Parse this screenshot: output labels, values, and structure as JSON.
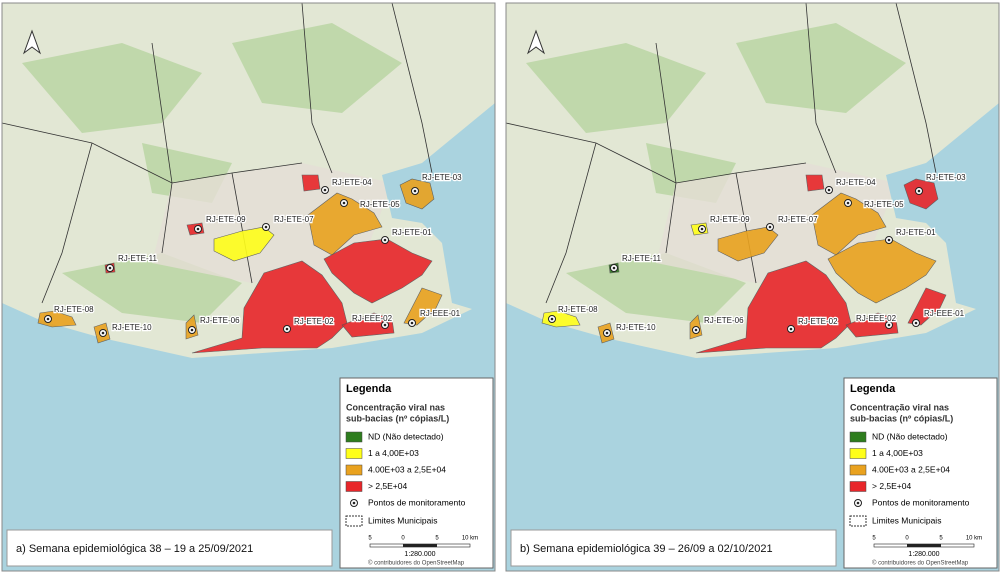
{
  "panels": [
    {
      "caption": "a) Semana epidemiológica 38 – 19 a 25/09/2021",
      "stations": [
        {
          "label": "RJ-ETE-04",
          "class": "high"
        },
        {
          "label": "RJ-ETE-03",
          "class": "mid"
        },
        {
          "label": "RJ-ETE-05",
          "class": "mid"
        },
        {
          "label": "RJ-ETE-01",
          "class": "high"
        },
        {
          "label": "RJ-ETE-09",
          "class": "high"
        },
        {
          "label": "RJ-ETE-07",
          "class": "low"
        },
        {
          "label": "RJ-ETE-11",
          "class": "high"
        },
        {
          "label": "RJ-ETE-08",
          "class": "mid"
        },
        {
          "label": "RJ-ETE-10",
          "class": "mid"
        },
        {
          "label": "RJ-ETE-06",
          "class": "mid"
        },
        {
          "label": "RJ-ETE-02",
          "class": "high"
        },
        {
          "label": "RJ-EEE-02",
          "class": "high"
        },
        {
          "label": "RJ-EEE-01",
          "class": "mid"
        }
      ]
    },
    {
      "caption": "b) Semana epidemiológica 39 – 26/09 a 02/10/2021",
      "stations": [
        {
          "label": "RJ-ETE-04",
          "class": "high"
        },
        {
          "label": "RJ-ETE-03",
          "class": "high"
        },
        {
          "label": "RJ-ETE-05",
          "class": "mid"
        },
        {
          "label": "RJ-ETE-01",
          "class": "mid"
        },
        {
          "label": "RJ-ETE-09",
          "class": "low"
        },
        {
          "label": "RJ-ETE-07",
          "class": "mid"
        },
        {
          "label": "RJ-ETE-11",
          "class": "nd"
        },
        {
          "label": "RJ-ETE-08",
          "class": "low"
        },
        {
          "label": "RJ-ETE-10",
          "class": "mid"
        },
        {
          "label": "RJ-ETE-06",
          "class": "mid"
        },
        {
          "label": "RJ-ETE-02",
          "class": "high"
        },
        {
          "label": "RJ-EEE-02",
          "class": "high"
        },
        {
          "label": "RJ-EEE-01",
          "class": "high"
        }
      ]
    }
  ],
  "legend": {
    "title": "Legenda",
    "subtitle": [
      "Concentração viral nas",
      "sub-bacias (nº cópias/L)"
    ],
    "classes": [
      {
        "key": "nd",
        "label": "ND (Não detectado)",
        "color": "#2e7d1e"
      },
      {
        "key": "low",
        "label": "1 a 4,00E+03",
        "color": "#ffff1a"
      },
      {
        "key": "mid",
        "label": "4.00E+03 a 2,5E+04",
        "color": "#e9a21f"
      },
      {
        "key": "high",
        "label": "> 2,5E+04",
        "color": "#e8262a"
      }
    ],
    "points": "Pontos de monitoramento",
    "boundaries": "Limites Municipais"
  },
  "scale": {
    "ticks": [
      "5",
      "0",
      "5",
      "10 km"
    ],
    "ratio": "1:280.000",
    "credit": "© contribuidores do OpenStreetMap"
  }
}
